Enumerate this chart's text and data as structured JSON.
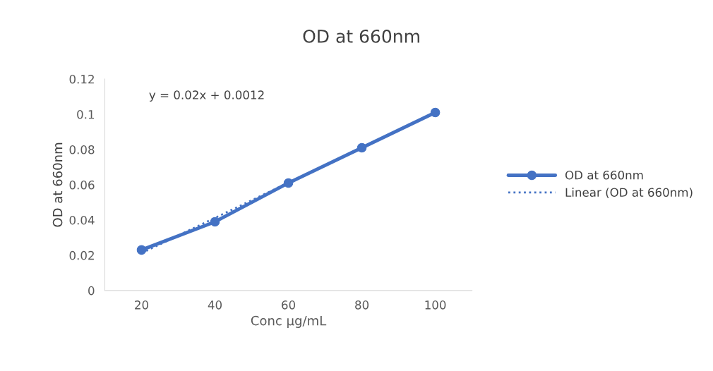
{
  "chart_data": {
    "type": "line",
    "title": "OD at 660nm",
    "xlabel": "Conc µg/mL",
    "ylabel": "OD at 660nm",
    "categories": [
      "20",
      "40",
      "60",
      "80",
      "100"
    ],
    "series": [
      {
        "name": "OD at 660nm",
        "color": "#4472c4",
        "values": [
          0.023,
          0.039,
          0.061,
          0.081,
          0.101
        ],
        "marker": "circle",
        "line_style": "solid"
      },
      {
        "name": "Linear (OD at 660nm)",
        "color": "#4472c4",
        "values": [
          0.0212,
          0.0412,
          0.0612,
          0.0812,
          0.1012
        ],
        "marker": "none",
        "line_style": "dotted"
      }
    ],
    "annotations": [
      "y = 0.02x + 0.0012"
    ],
    "ylim": [
      0,
      0.12
    ],
    "yticks": [
      {
        "value": 0,
        "label": "0"
      },
      0.02,
      0.04,
      0.06,
      0.08,
      {
        "value": 0.1,
        "label": "0.1"
      },
      0.12
    ],
    "grid": false,
    "legend": "right"
  }
}
